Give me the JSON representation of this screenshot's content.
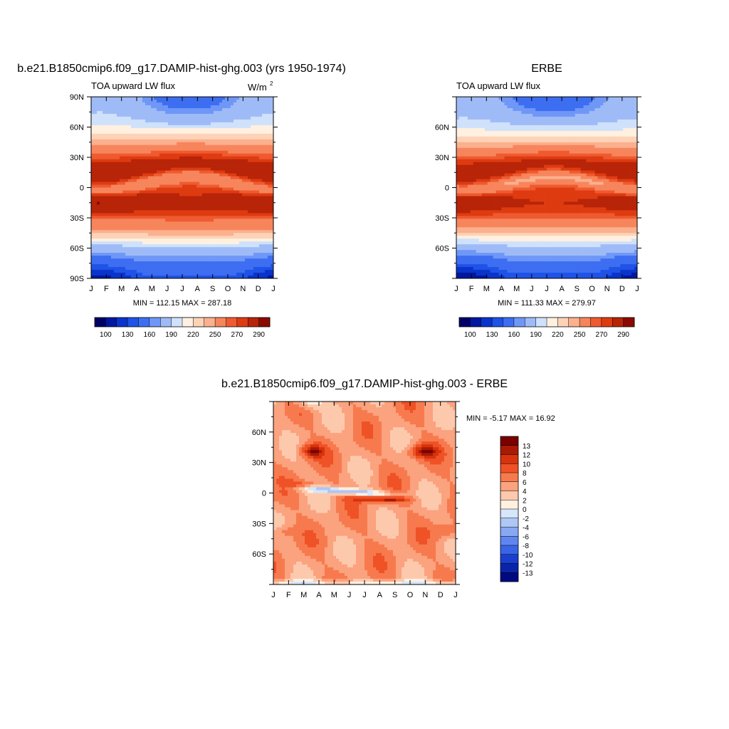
{
  "panels": {
    "model": {
      "title": "b.e21.B1850cmip6.f09_g17.DAMIP-hist-ghg.003 (yrs 1950-1974)",
      "subtitle_left": "TOA upward LW flux",
      "units_base": "W/m",
      "units_exp": "2",
      "stats": "MIN = 112.15 MAX = 287.18",
      "months": [
        "J",
        "F",
        "M",
        "A",
        "M",
        "J",
        "J",
        "A",
        "S",
        "O",
        "N",
        "D",
        "J"
      ],
      "lat_labels": [
        "90N",
        "60N",
        "30N",
        "0",
        "30S",
        "60S",
        "90S"
      ]
    },
    "obs": {
      "title": "ERBE",
      "subtitle_left": "TOA upward LW flux",
      "stats": "MIN = 111.33 MAX = 279.97",
      "months": [
        "J",
        "F",
        "M",
        "A",
        "M",
        "J",
        "J",
        "A",
        "S",
        "O",
        "N",
        "D",
        "J"
      ],
      "lat_labels": [
        "60N",
        "30N",
        "0",
        "30S",
        "60S"
      ]
    },
    "diff": {
      "title": "b.e21.B1850cmip6.f09_g17.DAMIP-hist-ghg.003 - ERBE",
      "stats": "MIN =  -5.17 MAX =  16.92",
      "months": [
        "J",
        "F",
        "M",
        "A",
        "M",
        "J",
        "J",
        "A",
        "S",
        "O",
        "N",
        "D",
        "J"
      ],
      "lat_labels": [
        "60N",
        "30N",
        "0",
        "30S",
        "60S"
      ]
    }
  },
  "colorbars": {
    "flux": {
      "tick_labels": [
        "100",
        "130",
        "160",
        "190",
        "220",
        "250",
        "270",
        "290"
      ],
      "colors": [
        "#000066",
        "#00179f",
        "#0a33cc",
        "#1f52e6",
        "#3d6ef2",
        "#6f97f7",
        "#9fbbf7",
        "#cfe1fb",
        "#fff0e0",
        "#fdd3b8",
        "#fbb08e",
        "#f7855c",
        "#ef5a30",
        "#de3b11",
        "#b82408",
        "#8b0a00"
      ]
    },
    "diff": {
      "labels": [
        "13",
        "12",
        "10",
        "8",
        "6",
        "4",
        "2",
        "0",
        "-2",
        "-4",
        "-6",
        "-8",
        "-10",
        "-12",
        "-13"
      ],
      "colors": [
        "#7a0000",
        "#a81a05",
        "#d8330c",
        "#ef5226",
        "#f77a4e",
        "#fba27e",
        "#fdc9ad",
        "#fff0e0",
        "#d6e6fb",
        "#aec7f5",
        "#89a8f2",
        "#5f86ef",
        "#3a64e6",
        "#1a3fcf",
        "#0a24a8",
        "#000a80"
      ]
    }
  },
  "chart_data": [
    {
      "type": "heatmap",
      "title": "b.e21.B1850cmip6.f09_g17.DAMIP-hist-ghg.003 (yrs 1950-1974)",
      "subtitle": "TOA upward LW flux",
      "units": "W/m2",
      "x": [
        "J",
        "F",
        "M",
        "A",
        "M",
        "J",
        "J",
        "A",
        "S",
        "O",
        "N",
        "D",
        "J"
      ],
      "y": [
        90,
        75,
        60,
        45,
        30,
        15,
        0,
        -15,
        -30,
        -45,
        -60,
        -75,
        -90
      ],
      "ylim": [
        -90,
        90
      ],
      "levels": [
        100,
        110,
        120,
        130,
        140,
        150,
        160,
        170,
        180,
        190,
        200,
        210,
        220,
        230,
        240,
        250,
        260,
        270,
        280,
        290
      ],
      "min": 112.15,
      "max": 287.18
    },
    {
      "type": "heatmap",
      "title": "ERBE",
      "subtitle": "TOA upward LW flux",
      "units": "W/m2",
      "x": [
        "J",
        "F",
        "M",
        "A",
        "M",
        "J",
        "J",
        "A",
        "S",
        "O",
        "N",
        "D",
        "J"
      ],
      "y": [
        90,
        75,
        60,
        45,
        30,
        15,
        0,
        -15,
        -30,
        -45,
        -60,
        -75,
        -90
      ],
      "ylim": [
        -90,
        90
      ],
      "min": 111.33,
      "max": 279.97
    },
    {
      "type": "heatmap",
      "title": "b.e21.B1850cmip6.f09_g17.DAMIP-hist-ghg.003 - ERBE",
      "x": [
        "J",
        "F",
        "M",
        "A",
        "M",
        "J",
        "J",
        "A",
        "S",
        "O",
        "N",
        "D",
        "J"
      ],
      "y": [
        90,
        75,
        60,
        45,
        30,
        15,
        0,
        -15,
        -30,
        -45,
        -60,
        -75,
        -90
      ],
      "ylim": [
        -90,
        90
      ],
      "levels": [
        -13,
        -12,
        -10,
        -8,
        -6,
        -4,
        -2,
        0,
        2,
        4,
        6,
        8,
        10,
        12,
        13
      ],
      "min": -5.17,
      "max": 16.92
    }
  ]
}
